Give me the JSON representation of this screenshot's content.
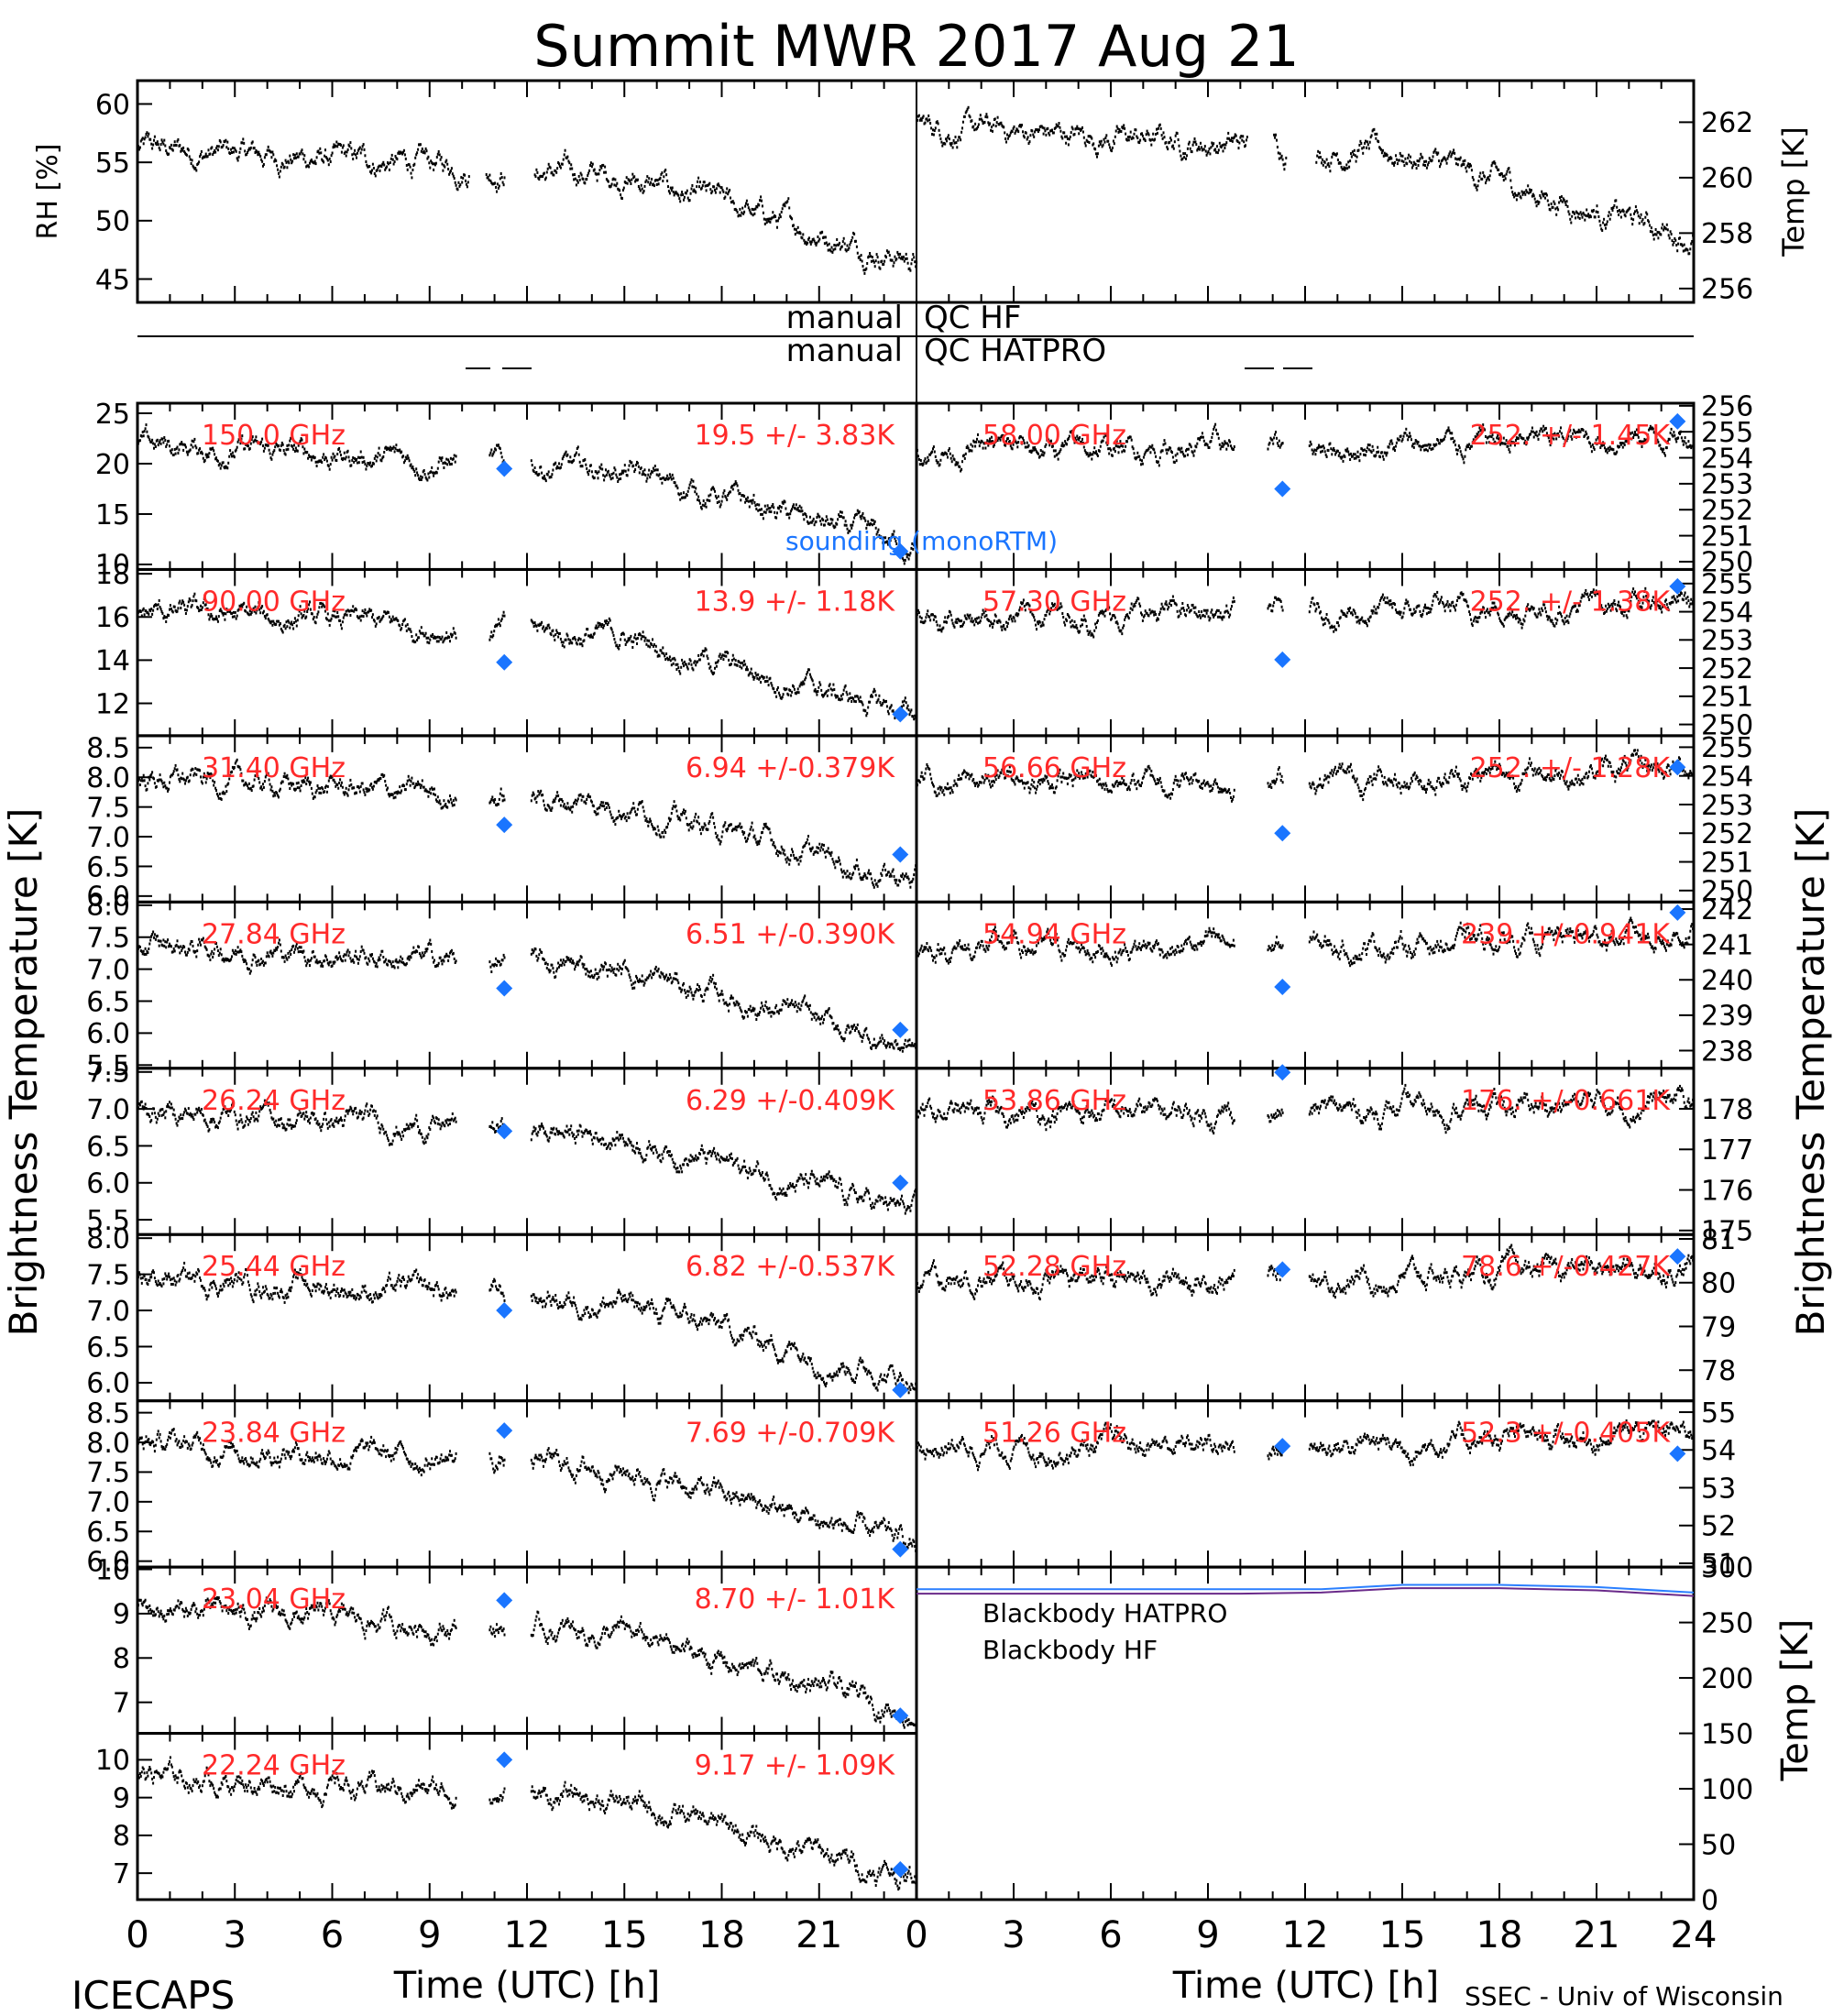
{
  "title": "Summit MWR 2017 Aug 21",
  "footer_left": "ICECAPS",
  "footer_right": "SSEC - Univ of Wisconsin",
  "colors": {
    "value": "#ff2a2a",
    "sounding": "#1a75ff",
    "bb_hatpro": "#2a7fff",
    "bb_hf": "#6a2a8a",
    "trace": "#000000"
  },
  "chart_data": {
    "type": "scatter",
    "xlabel": "Time (UTC) [h]",
    "xlim": [
      0,
      24
    ],
    "xticks": [
      "0",
      "3",
      "6",
      "9",
      "12",
      "15",
      "18",
      "21",
      "24"
    ],
    "xticks_left": [
      "0",
      "3",
      "6",
      "9",
      "12",
      "15",
      "18",
      "21"
    ],
    "ylabel_left": "Brightness Temperature [K]",
    "ylabel_right": "Brightness Temperature [K]",
    "top": {
      "rh": {
        "ylabel": "RH [%]",
        "ylim": [
          43,
          62
        ],
        "ticks": [
          "45",
          "50",
          "55",
          "60"
        ]
      },
      "temp": {
        "ylabel": "Temp [K]",
        "ylim": [
          255.5,
          263.5
        ],
        "ticks": [
          "256",
          "258",
          "260",
          "262"
        ]
      }
    },
    "qc": {
      "hf": "manual QC HF",
      "hatpro": "manual QC HATPRO"
    },
    "sounding_label": "sounding (monoRTM)",
    "left_panels": [
      {
        "freq": "150.0 GHz",
        "stats": "19.5 +/- 3.83K",
        "ylim": [
          9.5,
          26
        ],
        "ticks": [
          "10",
          "15",
          "20",
          "25"
        ],
        "marker": 19.5,
        "marker_end": 11.3
      },
      {
        "freq": "90.00 GHz",
        "stats": "13.9 +/- 1.18K",
        "ylim": [
          10.5,
          18.2
        ],
        "ticks": [
          "12",
          "14",
          "16",
          "18"
        ],
        "marker": 13.9,
        "marker_end": 11.5
      },
      {
        "freq": "31.40 GHz",
        "stats": "6.94 +/-0.379K",
        "ylim": [
          5.9,
          8.7
        ],
        "ticks": [
          "6.0",
          "6.5",
          "7.0",
          "7.5",
          "8.0",
          "8.5"
        ],
        "marker": 7.2,
        "marker_end": 6.7
      },
      {
        "freq": "27.84 GHz",
        "stats": "6.51 +/-0.390K",
        "ylim": [
          5.45,
          8.05
        ],
        "ticks": [
          "5.5",
          "6.0",
          "6.5",
          "7.0",
          "7.5",
          "8.0"
        ],
        "marker": 6.7,
        "marker_end": 6.05
      },
      {
        "freq": "26.24 GHz",
        "stats": "6.29 +/-0.409K",
        "ylim": [
          5.3,
          7.55
        ],
        "ticks": [
          "5.5",
          "6.0",
          "6.5",
          "7.0",
          "7.5"
        ],
        "marker": 6.7,
        "marker_end": 6.0
      },
      {
        "freq": "25.44 GHz",
        "stats": "6.82 +/-0.537K",
        "ylim": [
          5.75,
          8.05
        ],
        "ticks": [
          "6.0",
          "6.5",
          "7.0",
          "7.5",
          "8.0"
        ],
        "marker": 7.0,
        "marker_end": 5.9
      },
      {
        "freq": "23.84 GHz",
        "stats": "7.69 +/-0.709K",
        "ylim": [
          5.9,
          8.7
        ],
        "ticks": [
          "6.0",
          "6.5",
          "7.0",
          "7.5",
          "8.0",
          "8.5"
        ],
        "marker": 8.2,
        "marker_end": 6.2
      },
      {
        "freq": "23.04 GHz",
        "stats": "8.70 +/- 1.01K",
        "ylim": [
          6.3,
          10.05
        ],
        "ticks": [
          "7",
          "8",
          "9",
          "10"
        ],
        "marker": 9.3,
        "marker_end": 6.7
      },
      {
        "freq": "22.24 GHz",
        "stats": "9.17 +/- 1.09K",
        "ylim": [
          6.3,
          10.7
        ],
        "ticks": [
          "7",
          "8",
          "9",
          "10"
        ],
        "marker": 10.0,
        "marker_end": 7.1
      }
    ],
    "right_panels": [
      {
        "freq": "58.00 GHz",
        "stats": "252. +/- 1.45K",
        "ylim": [
          249.7,
          256.1
        ],
        "ticks": [
          "250",
          "251",
          "252",
          "253",
          "254",
          "255",
          "256"
        ],
        "marker": 252.8,
        "marker_end": 255.4
      },
      {
        "freq": "57.30 GHz",
        "stats": "252. +/- 1.38K",
        "ylim": [
          249.6,
          255.5
        ],
        "ticks": [
          "250",
          "251",
          "252",
          "253",
          "254",
          "255"
        ],
        "marker": 252.3,
        "marker_end": 254.9
      },
      {
        "freq": "56.66 GHz",
        "stats": "252. +/- 1.28K",
        "ylim": [
          249.6,
          255.4
        ],
        "ticks": [
          "250",
          "251",
          "252",
          "253",
          "254",
          "255"
        ],
        "marker": 252.0,
        "marker_end": 254.3
      },
      {
        "freq": "54.94 GHz",
        "stats": "239. +/-0.941K",
        "ylim": [
          237.5,
          242.2
        ],
        "ticks": [
          "238",
          "239",
          "240",
          "241",
          "242"
        ],
        "marker": 239.8,
        "marker_end": 241.9
      },
      {
        "freq": "53.86 GHz",
        "stats": "176. +/-0.661K",
        "ylim": [
          174.9,
          179.0
        ],
        "ticks": [
          "175",
          "176",
          "177",
          "178"
        ],
        "marker": 178.9,
        "marker_end": null
      },
      {
        "freq": "52.28 GHz",
        "stats": "78.6 +/-0.427K",
        "ylim": [
          77.3,
          81.1
        ],
        "ticks": [
          "78",
          "79",
          "80",
          "81"
        ],
        "marker": 80.3,
        "marker_end": 80.6
      },
      {
        "freq": "51.26 GHz",
        "stats": "52.3 +/-0.405K",
        "ylim": [
          50.9,
          55.3
        ],
        "ticks": [
          "51",
          "52",
          "53",
          "54",
          "55"
        ],
        "marker": 54.1,
        "marker_end": 53.9
      }
    ],
    "blackbody": {
      "ylabel": "Temp [K]",
      "ylim": [
        0,
        300
      ],
      "ticks": [
        "0",
        "50",
        "100",
        "150",
        "200",
        "250",
        "300"
      ],
      "legend": [
        "Blackbody HATPRO",
        "Blackbody HF"
      ],
      "hatpro": [
        [
          0,
          280
        ],
        [
          10,
          280
        ],
        [
          12.5,
          280
        ],
        [
          15,
          284
        ],
        [
          18,
          284
        ],
        [
          21,
          282
        ],
        [
          24,
          277
        ]
      ],
      "hf": [
        [
          0,
          276
        ],
        [
          10,
          276
        ],
        [
          12.5,
          277
        ],
        [
          15,
          281
        ],
        [
          18,
          281
        ],
        [
          21,
          279
        ],
        [
          24,
          274
        ]
      ]
    }
  }
}
